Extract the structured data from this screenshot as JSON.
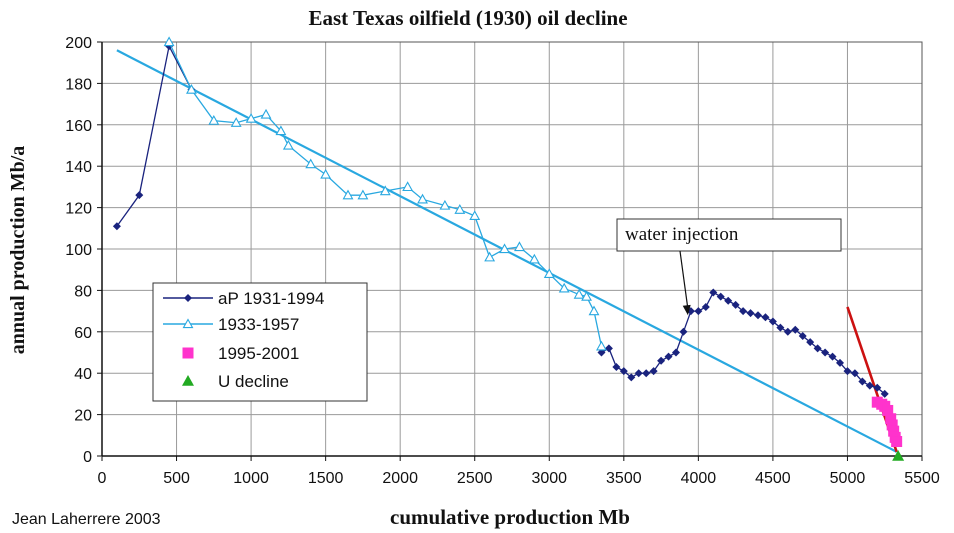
{
  "chart_data": {
    "type": "line",
    "title": "East Texas oilfield (1930) oil decline",
    "xlabel": "cumulative production Mb",
    "ylabel": "annual production Mb/a",
    "credit": "Jean Laherrere 2003",
    "xlim": [
      0,
      5500
    ],
    "ylim": [
      0,
      200
    ],
    "x_ticks": [
      "0",
      "500",
      "1000",
      "1500",
      "2000",
      "2500",
      "3000",
      "3500",
      "4000",
      "4500",
      "5000",
      "5500"
    ],
    "y_ticks": [
      "0",
      "20",
      "40",
      "60",
      "80",
      "100",
      "120",
      "140",
      "160",
      "180",
      "200"
    ],
    "grid": true,
    "legend_position": "bottom-left",
    "colors": {
      "aP": "#1a237e",
      "s1933": "#29a8e0",
      "trend": "#29a8e0",
      "s1995": "#ff33cc",
      "red_line": "#cc1111",
      "u_decline": "#22aa22",
      "grid": "#9a9a9a"
    },
    "series": [
      {
        "name": "aP 1931-1994",
        "marker": "diamond",
        "points": [
          [
            100,
            111
          ],
          [
            250,
            126
          ],
          [
            450,
            198
          ],
          [
            600,
            177
          ],
          [
            3350,
            50
          ],
          [
            3400,
            52
          ],
          [
            3450,
            43
          ],
          [
            3500,
            41
          ],
          [
            3550,
            38
          ],
          [
            3600,
            40
          ],
          [
            3650,
            40
          ],
          [
            3700,
            41
          ],
          [
            3750,
            46
          ],
          [
            3800,
            48
          ],
          [
            3850,
            50
          ],
          [
            3900,
            60
          ],
          [
            3950,
            70
          ],
          [
            4000,
            70
          ],
          [
            4050,
            72
          ],
          [
            4100,
            79
          ],
          [
            4150,
            77
          ],
          [
            4200,
            75
          ],
          [
            4250,
            73
          ],
          [
            4300,
            70
          ],
          [
            4350,
            69
          ],
          [
            4400,
            68
          ],
          [
            4450,
            67
          ],
          [
            4500,
            65
          ],
          [
            4550,
            62
          ],
          [
            4600,
            60
          ],
          [
            4650,
            61
          ],
          [
            4700,
            58
          ],
          [
            4750,
            55
          ],
          [
            4800,
            52
          ],
          [
            4850,
            50
          ],
          [
            4900,
            48
          ],
          [
            4950,
            45
          ],
          [
            5000,
            41
          ],
          [
            5050,
            40
          ],
          [
            5100,
            36
          ],
          [
            5150,
            34
          ],
          [
            5200,
            33
          ],
          [
            5250,
            30
          ]
        ]
      },
      {
        "name": "1933-1957",
        "marker": "triangle-open",
        "points": [
          [
            450,
            200
          ],
          [
            600,
            177
          ],
          [
            750,
            162
          ],
          [
            900,
            161
          ],
          [
            1000,
            163
          ],
          [
            1100,
            165
          ],
          [
            1200,
            157
          ],
          [
            1250,
            150
          ],
          [
            1400,
            141
          ],
          [
            1500,
            136
          ],
          [
            1650,
            126
          ],
          [
            1750,
            126
          ],
          [
            1900,
            128
          ],
          [
            2050,
            130
          ],
          [
            2150,
            124
          ],
          [
            2300,
            121
          ],
          [
            2400,
            119
          ],
          [
            2500,
            116
          ],
          [
            2600,
            96
          ],
          [
            2700,
            100
          ],
          [
            2800,
            101
          ],
          [
            2900,
            95
          ],
          [
            3000,
            88
          ],
          [
            3100,
            81
          ],
          [
            3200,
            78
          ],
          [
            3250,
            77
          ],
          [
            3300,
            70
          ],
          [
            3350,
            53
          ]
        ]
      },
      {
        "name": "1995-2001",
        "marker": "square",
        "points": [
          [
            5200,
            26
          ],
          [
            5230,
            25
          ],
          [
            5250,
            24
          ],
          [
            5270,
            22
          ],
          [
            5290,
            18
          ],
          [
            5300,
            15
          ],
          [
            5310,
            12
          ],
          [
            5320,
            9
          ],
          [
            5330,
            7
          ]
        ]
      },
      {
        "name": "U decline",
        "marker": "triangle-filled",
        "points": [
          [
            5340,
            0
          ]
        ]
      }
    ],
    "trend_lines": [
      {
        "points": [
          [
            100,
            196
          ],
          [
            5330,
            2
          ]
        ]
      },
      {
        "points": [
          [
            5000,
            72
          ],
          [
            5330,
            2
          ]
        ]
      }
    ],
    "annotation": {
      "text": "water injection",
      "arrow_to": [
        3930,
        68
      ]
    }
  }
}
